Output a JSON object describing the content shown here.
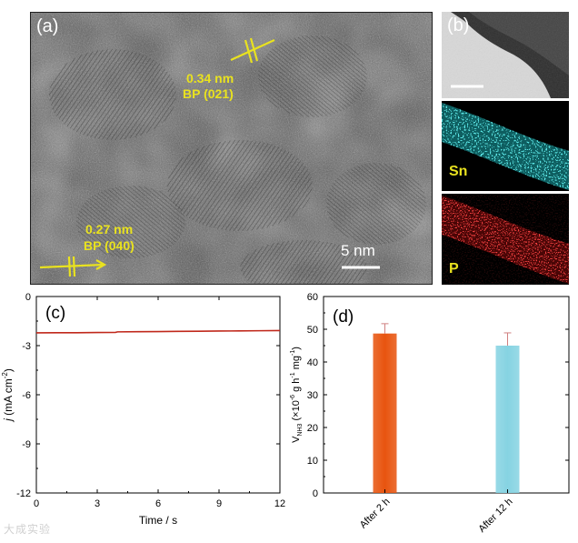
{
  "panel_a": {
    "letter": "(a)",
    "annotation_1_spacing": "0.34 nm",
    "annotation_1_plane": "BP (021)",
    "annotation_2_spacing": "0.27 nm",
    "annotation_2_plane": "BP (040)",
    "scale_bar_label": "5 nm"
  },
  "panel_b": {
    "letter": "(b)",
    "element_1": "Sn",
    "element_2": "P",
    "colors": {
      "sn_map": "#1bbdbd",
      "p_map": "#d01010"
    }
  },
  "chart_data": [
    {
      "type": "line",
      "panel": "(c)",
      "xlabel": "Time / s",
      "ylabel_main": "j",
      "ylabel_unit": "(mA cm",
      "ylabel_sup": "-2",
      "ylabel_end": ")",
      "xlim": [
        0,
        12
      ],
      "ylim": [
        -12,
        0
      ],
      "xticks": [
        "0",
        "3",
        "6",
        "9",
        "12"
      ],
      "yticks": [
        "0",
        "-3",
        "-6",
        "-9",
        "-12"
      ],
      "series": [
        {
          "color": "#c0281b",
          "x": [
            0,
            1,
            2,
            3,
            3.9,
            4,
            5,
            6,
            7,
            8,
            9,
            10,
            11,
            12
          ],
          "y": [
            -2.22,
            -2.21,
            -2.21,
            -2.2,
            -2.19,
            -2.16,
            -2.15,
            -2.14,
            -2.13,
            -2.12,
            -2.11,
            -2.1,
            -2.09,
            -2.08
          ]
        }
      ]
    },
    {
      "type": "bar",
      "panel": "(d)",
      "categories": [
        "After 2 h",
        "After 12 h"
      ],
      "values": [
        48.7,
        45.0
      ],
      "errors": [
        3.0,
        3.9
      ],
      "bar_colors": [
        "#e8540f",
        "#86d3e2"
      ],
      "ylim": [
        0,
        60
      ],
      "yticks": [
        "0",
        "10",
        "20",
        "30",
        "40",
        "50",
        "60"
      ],
      "ylabel_main": "V",
      "ylabel_sub": "NH3",
      "ylabel_rest": "(×10",
      "ylabel_exp": "-6",
      "ylabel_units": "g h",
      "ylabel_exp2": "-1",
      "ylabel_units2": "mg",
      "ylabel_exp3": "-1",
      "ylabel_close": ")"
    }
  ],
  "watermark": "大成实验"
}
